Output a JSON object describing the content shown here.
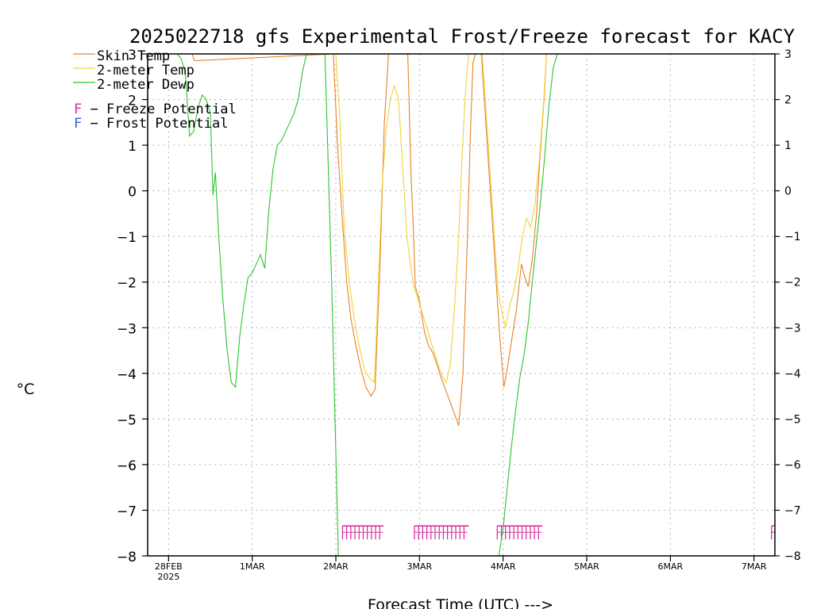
{
  "chart_data": {
    "type": "line",
    "title": "2025022718 gfs Experimental Frost/Freeze forecast for KACY",
    "xlabel": "Forecast Time (UTC) --->",
    "ylabel": "°C",
    "ylim": [
      -8,
      3
    ],
    "xlim": [
      -0.25,
      7.25
    ],
    "grid": true,
    "legend_position": "top-left",
    "y_ticks": [
      -8,
      -7,
      -6,
      -5,
      -4,
      -3,
      -2,
      -1,
      0,
      1,
      2,
      3
    ],
    "y_tick_labels": [
      "−8",
      "−7",
      "−6",
      "−5",
      "−4",
      "−3",
      "−2",
      "−1",
      "0",
      "1",
      "2",
      "3"
    ],
    "x_ticks": [
      {
        "value": 0,
        "label": "28FEB",
        "sublabel": "2025"
      },
      {
        "value": 1,
        "label": "1MAR",
        "sublabel": ""
      },
      {
        "value": 2,
        "label": "2MAR",
        "sublabel": ""
      },
      {
        "value": 3,
        "label": "3MAR",
        "sublabel": ""
      },
      {
        "value": 4,
        "label": "4MAR",
        "sublabel": ""
      },
      {
        "value": 5,
        "label": "5MAR",
        "sublabel": ""
      },
      {
        "value": 6,
        "label": "6MAR",
        "sublabel": ""
      },
      {
        "value": 7,
        "label": "7MAR",
        "sublabel": ""
      }
    ],
    "series": [
      {
        "name": "Skin Temp",
        "color": "#e8822a",
        "x": [
          0.28,
          0.31,
          1.97,
          2.02,
          2.08,
          2.13,
          2.18,
          2.24,
          2.3,
          2.36,
          2.42,
          2.47,
          2.53,
          2.58,
          2.63,
          2.68,
          2.86,
          2.9,
          2.93,
          2.95,
          3.0,
          3.06,
          3.11,
          3.16,
          3.2,
          3.25,
          3.31,
          3.36,
          3.42,
          3.47,
          3.52,
          3.57,
          3.61,
          3.64,
          3.67,
          3.7,
          3.74,
          3.96,
          4.01,
          4.05,
          4.1,
          4.16,
          4.22,
          4.26,
          4.3,
          4.35,
          4.4,
          4.44,
          4.49,
          4.52
        ],
        "y": [
          3.0,
          2.85,
          3.0,
          1.0,
          -0.7,
          -2.0,
          -2.8,
          -3.4,
          -3.9,
          -4.3,
          -4.5,
          -4.35,
          -1.5,
          1.5,
          3.0,
          3.0,
          3.0,
          0.3,
          -1.0,
          -2.1,
          -2.4,
          -3.1,
          -3.4,
          -3.55,
          -3.75,
          -4.05,
          -4.35,
          -4.6,
          -4.9,
          -5.15,
          -4.0,
          -1.2,
          1.3,
          2.8,
          3.0,
          3.0,
          3.0,
          -3.2,
          -4.3,
          -3.9,
          -3.3,
          -2.6,
          -1.6,
          -1.9,
          -2.1,
          -1.5,
          -0.5,
          0.7,
          2.0,
          3.0
        ]
      },
      {
        "name": "2-meter Temp",
        "color": "#f2d23a",
        "x": [
          2.0,
          2.05,
          2.1,
          2.16,
          2.22,
          2.28,
          2.34,
          2.4,
          2.46,
          2.51,
          2.55,
          2.6,
          2.65,
          2.7,
          2.75,
          2.8,
          2.85,
          2.9,
          2.93,
          2.97,
          3.02,
          3.07,
          3.12,
          3.17,
          3.22,
          3.27,
          3.32,
          3.37,
          3.42,
          3.47,
          3.51,
          3.55,
          3.59,
          3.63,
          3.67,
          3.71,
          3.75,
          3.94,
          3.98,
          4.03,
          4.08,
          4.13,
          4.18,
          4.23,
          4.28,
          4.33,
          4.38,
          4.43,
          4.48,
          4.52
        ],
        "y": [
          3.0,
          1.5,
          -0.8,
          -2.0,
          -2.8,
          -3.4,
          -3.9,
          -4.1,
          -4.2,
          -2.0,
          0.0,
          1.3,
          2.0,
          2.3,
          2.0,
          0.5,
          -1.0,
          -1.7,
          -2.1,
          -2.3,
          -2.6,
          -2.9,
          -3.2,
          -3.5,
          -3.8,
          -4.05,
          -4.2,
          -3.8,
          -2.5,
          -1.0,
          0.8,
          2.2,
          3.0,
          3.0,
          3.0,
          3.0,
          3.0,
          -2.2,
          -2.6,
          -3.0,
          -2.5,
          -2.2,
          -1.7,
          -1.0,
          -0.6,
          -0.8,
          -0.3,
          0.6,
          1.8,
          3.0
        ]
      },
      {
        "name": "2-meter Dewp",
        "color": "#2ec42e",
        "x": [
          -0.25,
          -0.2,
          -0.15,
          -0.1,
          -0.05,
          0.0,
          0.05,
          0.1,
          0.15,
          0.2,
          0.25,
          0.3,
          0.35,
          0.4,
          0.45,
          0.5,
          0.53,
          0.56,
          0.6,
          0.65,
          0.7,
          0.75,
          0.8,
          0.85,
          0.9,
          0.95,
          1.0,
          1.05,
          1.1,
          1.15,
          1.2,
          1.25,
          1.3,
          1.35,
          1.4,
          1.45,
          1.5,
          1.55,
          1.6,
          1.65,
          1.7,
          1.75,
          1.8,
          1.87,
          1.95,
          2.03,
          3.95,
          4.0,
          4.05,
          4.1,
          4.15,
          4.2,
          4.25,
          4.3,
          4.35,
          4.4,
          4.45,
          4.5,
          4.55,
          4.6,
          4.65
        ],
        "y": [
          3.0,
          3.0,
          3.0,
          3.0,
          3.0,
          3.0,
          3.0,
          3.0,
          2.9,
          2.6,
          1.2,
          1.3,
          1.8,
          2.1,
          2.0,
          1.7,
          -0.1,
          0.4,
          -1.0,
          -2.4,
          -3.5,
          -4.2,
          -4.3,
          -3.2,
          -2.5,
          -1.9,
          -1.8,
          -1.6,
          -1.4,
          -1.7,
          -0.4,
          0.5,
          1.0,
          1.1,
          1.3,
          1.5,
          1.7,
          2.0,
          2.6,
          3.0,
          3.0,
          3.0,
          3.0,
          3.0,
          -2.0,
          -8.0,
          -8.0,
          -7.4,
          -6.5,
          -5.6,
          -4.8,
          -4.1,
          -3.6,
          -2.9,
          -2.0,
          -1.1,
          -0.2,
          0.8,
          1.9,
          2.7,
          3.0
        ]
      }
    ],
    "annotations": [
      {
        "name": "Freeze Potential",
        "color": "#d6249b",
        "ranges": [
          [
            2.08,
            2.57
          ],
          [
            2.94,
            3.59
          ],
          [
            3.93,
            4.47
          ],
          [
            7.21,
            7.25
          ]
        ]
      },
      {
        "name": "Frost Potential",
        "color": "#3b5bdb",
        "ranges": []
      }
    ]
  },
  "legend": {
    "series_labels": [
      "Skin Temp",
      "2-meter Temp",
      "2-meter Dewp"
    ],
    "freeze_symbol": "F",
    "freeze_text": " − Freeze Potential",
    "frost_symbol": "F",
    "frost_text": " − Frost Potential"
  },
  "colors": {
    "skin": "#e8822a",
    "temp2m": "#f2d23a",
    "dewp": "#2ec42e",
    "freeze": "#d6249b",
    "frost": "#3b5bdb",
    "grid": "#9a9a9a",
    "axis": "#000000"
  }
}
